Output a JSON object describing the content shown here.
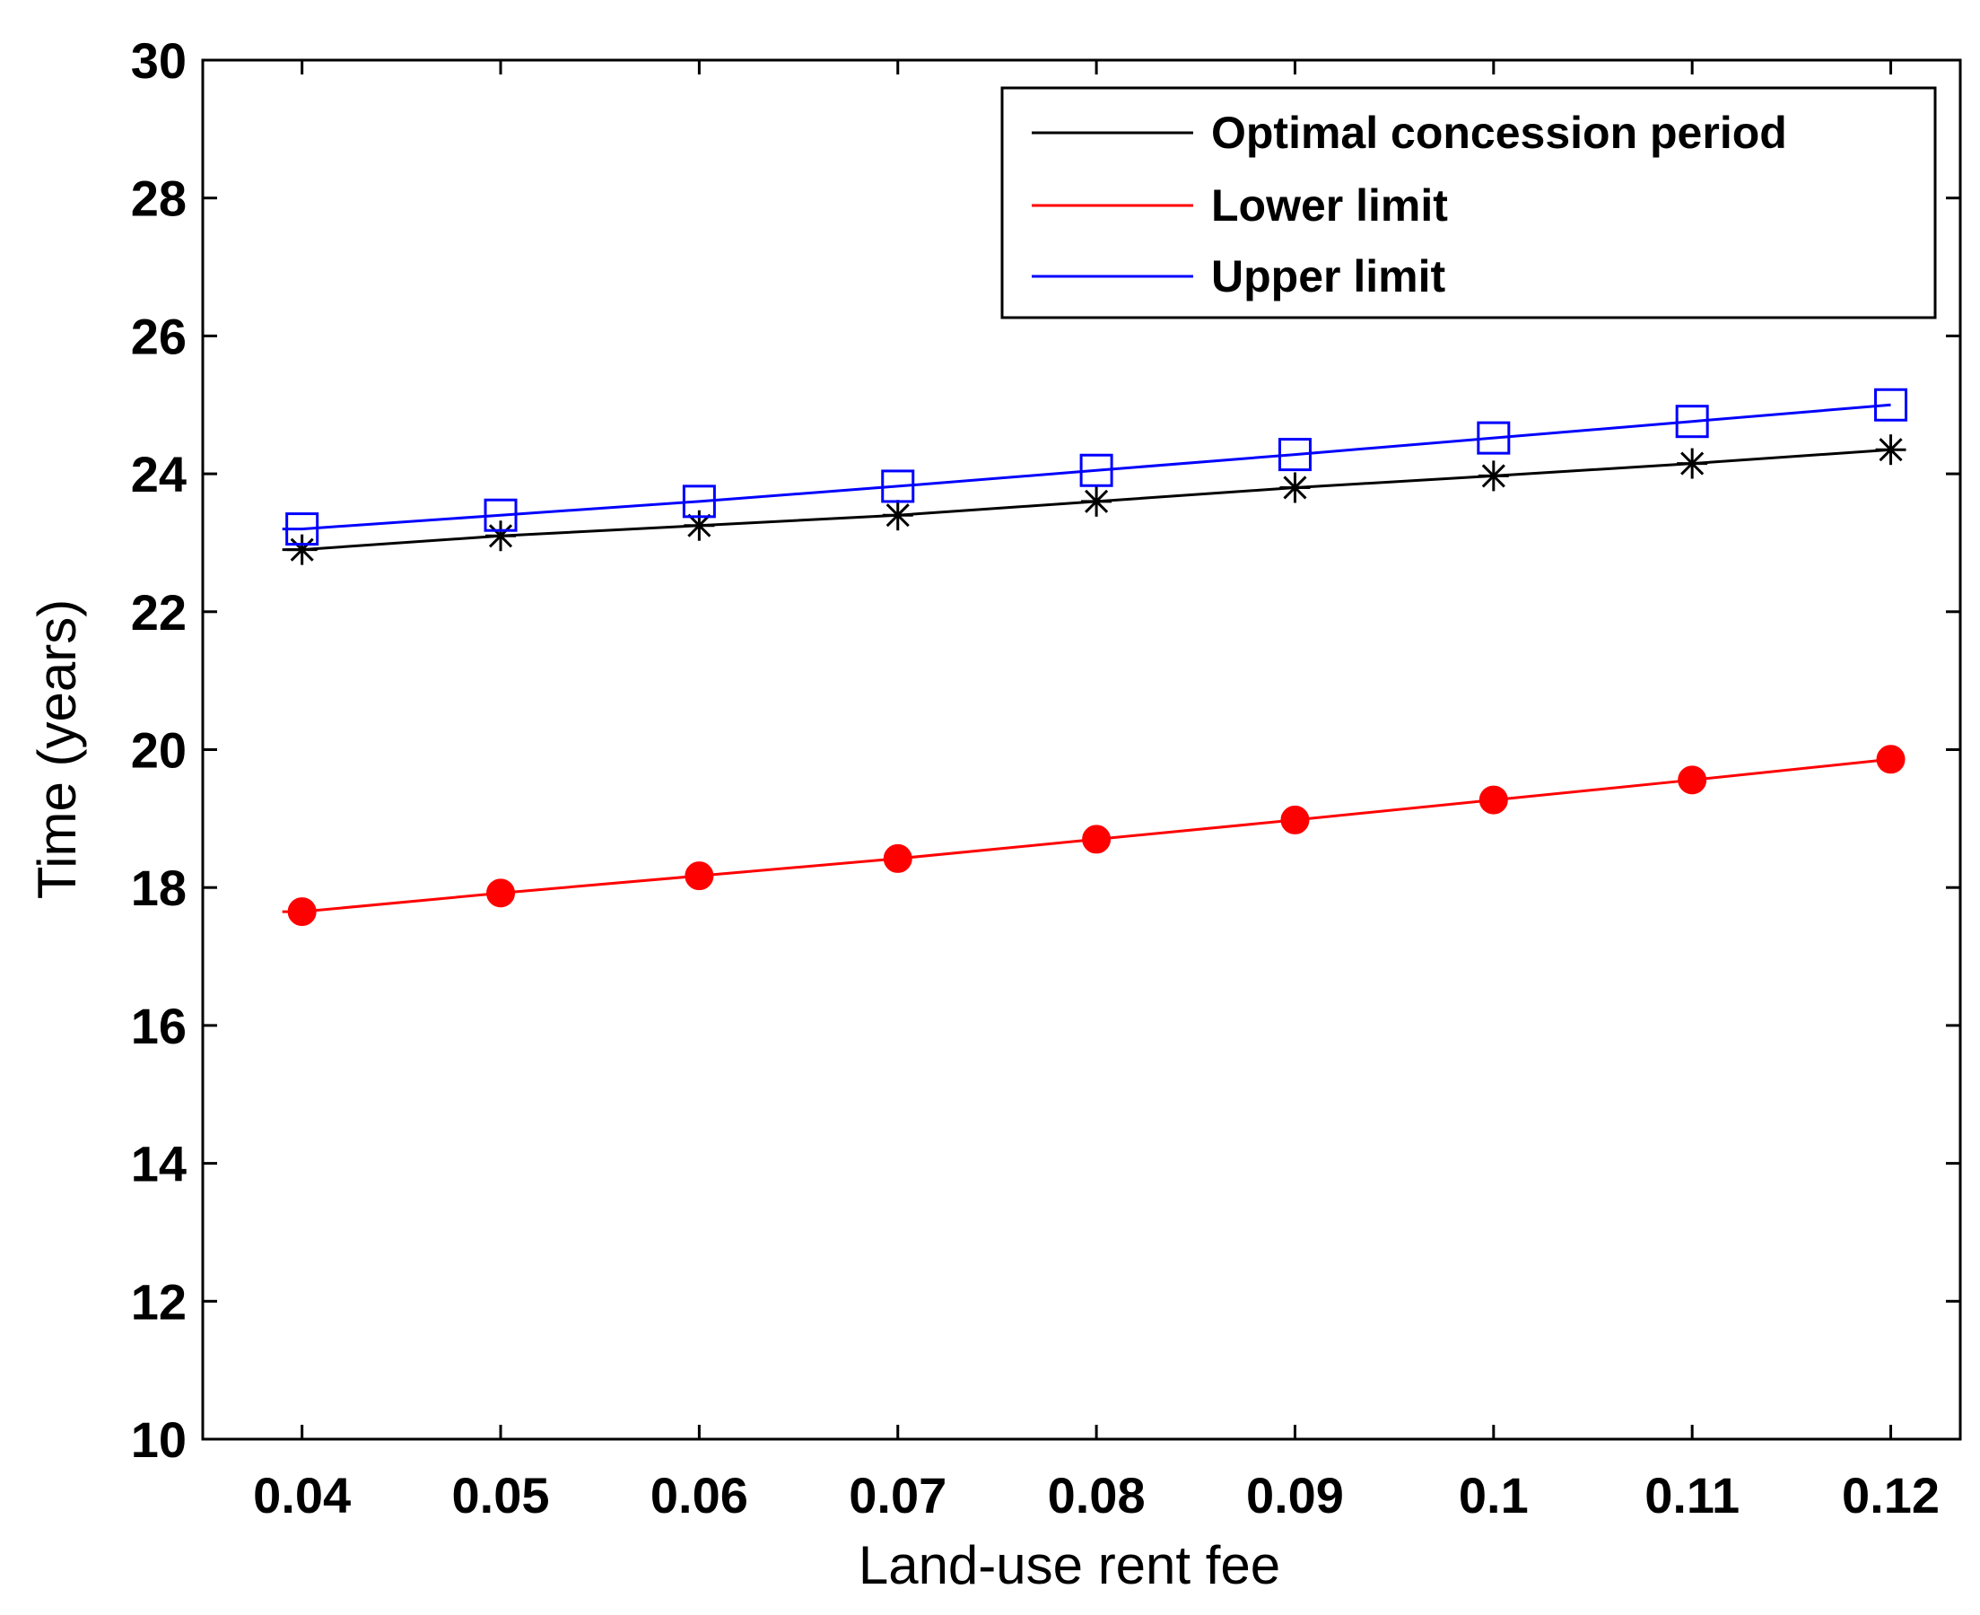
{
  "chart_data": {
    "type": "line",
    "title": "",
    "xlabel": "Land-use rent fee",
    "ylabel": "Time (years)",
    "x": [
      0.04,
      0.05,
      0.06,
      0.07,
      0.08,
      0.09,
      0.1,
      0.11,
      0.12
    ],
    "x_tick_labels": [
      "0.04",
      "0.05",
      "0.06",
      "0.07",
      "0.08",
      "0.09",
      "0.1",
      "0.11",
      "0.12"
    ],
    "y_ticks": [
      10,
      12,
      14,
      16,
      18,
      20,
      22,
      24,
      26,
      28,
      30
    ],
    "y_tick_labels": [
      "10",
      "12",
      "14",
      "16",
      "18",
      "20",
      "22",
      "24",
      "26",
      "28",
      "30"
    ],
    "xlim": [
      0.035,
      0.1235
    ],
    "ylim": [
      10,
      30
    ],
    "grid": false,
    "legend_position": "top-right",
    "series": [
      {
        "name": "Optimal concession period",
        "color": "#000000",
        "marker": "asterisk",
        "values": [
          22.9,
          23.1,
          23.25,
          23.4,
          23.6,
          23.8,
          23.97,
          24.15,
          24.35
        ]
      },
      {
        "name": "Lower limit",
        "color": "#ff0000",
        "marker": "filled-circle",
        "values": [
          17.65,
          17.92,
          18.17,
          18.42,
          18.7,
          18.98,
          19.27,
          19.56,
          19.86
        ]
      },
      {
        "name": "Upper limit",
        "color": "#0000ff",
        "marker": "square",
        "values": [
          23.2,
          23.4,
          23.6,
          23.82,
          24.05,
          24.28,
          24.52,
          24.76,
          25.0
        ]
      }
    ]
  }
}
